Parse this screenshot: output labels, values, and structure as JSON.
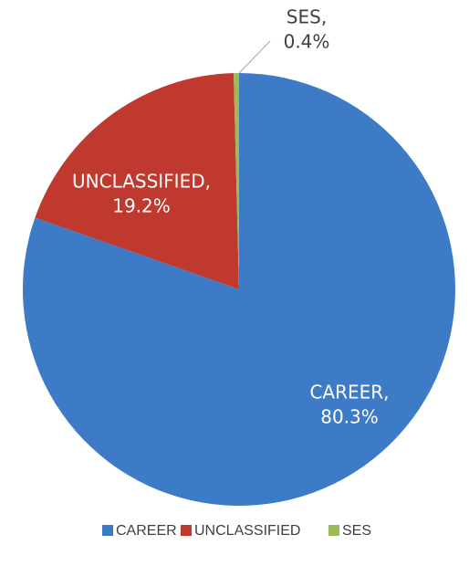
{
  "chart_data": {
    "type": "pie",
    "categories": [
      "CAREER",
      "UNCLASSIFIED",
      "SES"
    ],
    "values": [
      80.3,
      19.2,
      0.4
    ],
    "value_labels": [
      "80.3%",
      "19.2%",
      "0.4%"
    ],
    "data_label_names": [
      "CAREER,",
      "UNCLASSIFIED,",
      "SES,"
    ],
    "colors": [
      "#3d7bc6",
      "#c0392e",
      "#9bbb59"
    ],
    "legend": "bottom"
  }
}
